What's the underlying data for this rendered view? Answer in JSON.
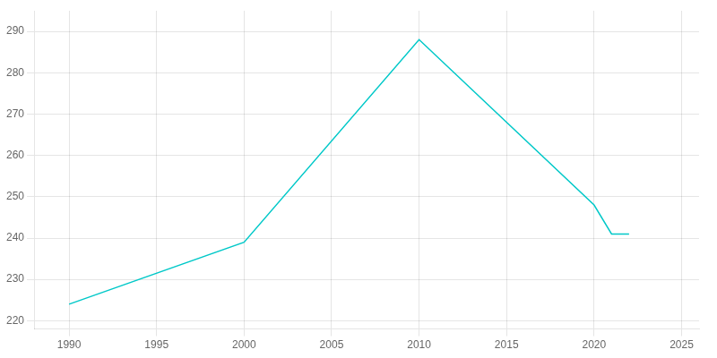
{
  "chart_data": {
    "type": "line",
    "x": [
      1990,
      2000,
      2010,
      2020,
      2021,
      2022
    ],
    "values": [
      224,
      239,
      288,
      248,
      241,
      241
    ],
    "color": "#00c8c8",
    "xlim": [
      1988,
      2026
    ],
    "xticks": [
      1990,
      1995,
      2000,
      2005,
      2010,
      2015,
      2020,
      2025
    ],
    "ylim": [
      218,
      295
    ],
    "yticks": [
      220,
      230,
      240,
      250,
      260,
      270,
      280,
      290
    ],
    "grid": true
  }
}
